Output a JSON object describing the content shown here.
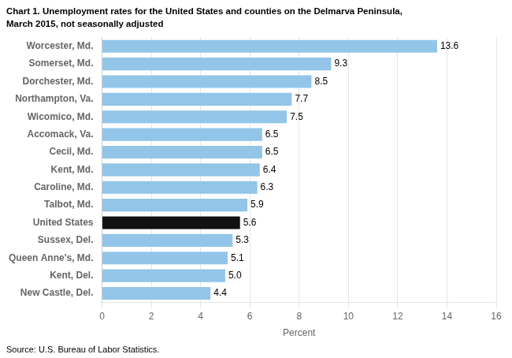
{
  "chart_data": {
    "type": "bar",
    "orientation": "horizontal",
    "title": "Chart 1. Unemployment rates for the United States and counties on the Delmarva Peninsula,",
    "subtitle": "March 2015, not seasonally adjusted",
    "footer": "Source: U.S. Bureau of Labor Statistics.",
    "categories": [
      "Worcester, Md.",
      "Somerset, Md.",
      "Dorchester, Md.",
      "Northampton, Va.",
      "Wicomico, Md.",
      "Accomack, Va.",
      "Cecil, Md.",
      "Kent, Md.",
      "Caroline, Md.",
      "Talbot, Md.",
      "United States",
      "Sussex, Del.",
      "Queen Anne's, Md.",
      "Kent, Del.",
      "New Castle, Del."
    ],
    "values": [
      13.6,
      9.3,
      8.5,
      7.7,
      7.5,
      6.5,
      6.5,
      6.4,
      6.3,
      5.9,
      5.6,
      5.3,
      5.1,
      5.0,
      4.4
    ],
    "value_labels": [
      "13.6",
      "9.3",
      "8.5",
      "7.7",
      "7.5",
      "6.5",
      "6.5",
      "6.4",
      "6.3",
      "5.9",
      "5.6",
      "5.3",
      "5.1",
      "5.0",
      "4.4"
    ],
    "colors": [
      "#92c5e8",
      "#92c5e8",
      "#92c5e8",
      "#92c5e8",
      "#92c5e8",
      "#92c5e8",
      "#92c5e8",
      "#92c5e8",
      "#92c5e8",
      "#92c5e8",
      "#111111",
      "#92c5e8",
      "#92c5e8",
      "#92c5e8",
      "#92c5e8"
    ],
    "data_labels": true,
    "xlabel": "Percent",
    "xlim": [
      0,
      16
    ],
    "xticks": [
      0,
      2,
      4,
      6,
      8,
      10,
      12,
      14,
      16
    ],
    "grid": true
  }
}
